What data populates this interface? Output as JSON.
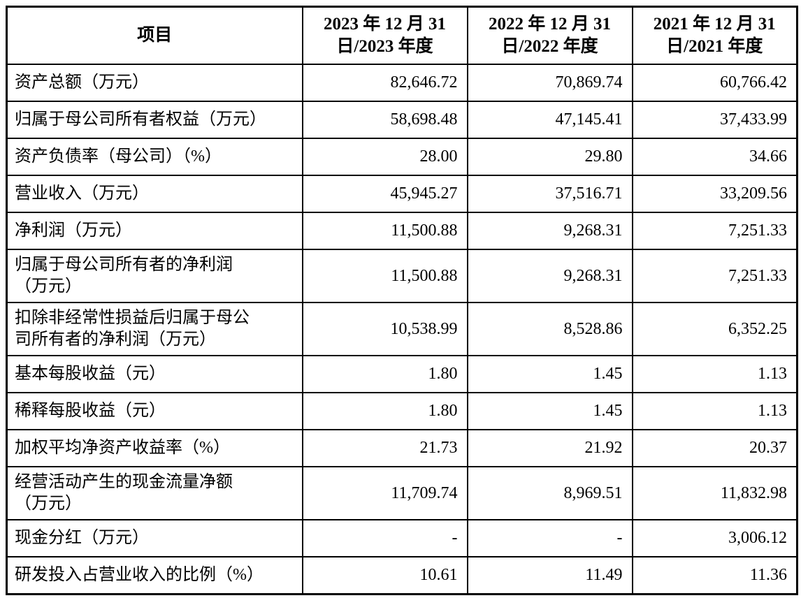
{
  "table": {
    "header": {
      "item_label": "项目",
      "period_columns": [
        "2023 年 12 月 31\n日/2023 年度",
        "2022 年 12 月 31\n日/2022 年度",
        "2021 年 12 月 31\n日/2021 年度"
      ]
    },
    "rows": [
      {
        "label": "资产总额（万元）",
        "values": [
          "82,646.72",
          "70,869.74",
          "60,766.42"
        ]
      },
      {
        "label": "归属于母公司所有者权益（万元）",
        "values": [
          "58,698.48",
          "47,145.41",
          "37,433.99"
        ]
      },
      {
        "label": "资产负债率（母公司）（%）",
        "values": [
          "28.00",
          "29.80",
          "34.66"
        ]
      },
      {
        "label": "营业收入（万元）",
        "values": [
          "45,945.27",
          "37,516.71",
          "33,209.56"
        ]
      },
      {
        "label": "净利润（万元）",
        "values": [
          "11,500.88",
          "9,268.31",
          "7,251.33"
        ]
      },
      {
        "label": "归属于母公司所有者的净利润\n（万元）",
        "values": [
          "11,500.88",
          "9,268.31",
          "7,251.33"
        ]
      },
      {
        "label": "扣除非经常性损益后归属于母公\n司所有者的净利润（万元）",
        "values": [
          "10,538.99",
          "8,528.86",
          "6,352.25"
        ]
      },
      {
        "label": "基本每股收益（元）",
        "values": [
          "1.80",
          "1.45",
          "1.13"
        ]
      },
      {
        "label": "稀释每股收益（元）",
        "values": [
          "1.80",
          "1.45",
          "1.13"
        ]
      },
      {
        "label": "加权平均净资产收益率（%）",
        "values": [
          "21.73",
          "21.92",
          "20.37"
        ]
      },
      {
        "label": "经营活动产生的现金流量净额\n（万元）",
        "values": [
          "11,709.74",
          "8,969.51",
          "11,832.98"
        ]
      },
      {
        "label": "现金分红（万元）",
        "values": [
          "-",
          "-",
          "3,006.12"
        ]
      },
      {
        "label": "研发投入占营业收入的比例（%）",
        "values": [
          "10.61",
          "11.49",
          "11.36"
        ]
      }
    ]
  }
}
